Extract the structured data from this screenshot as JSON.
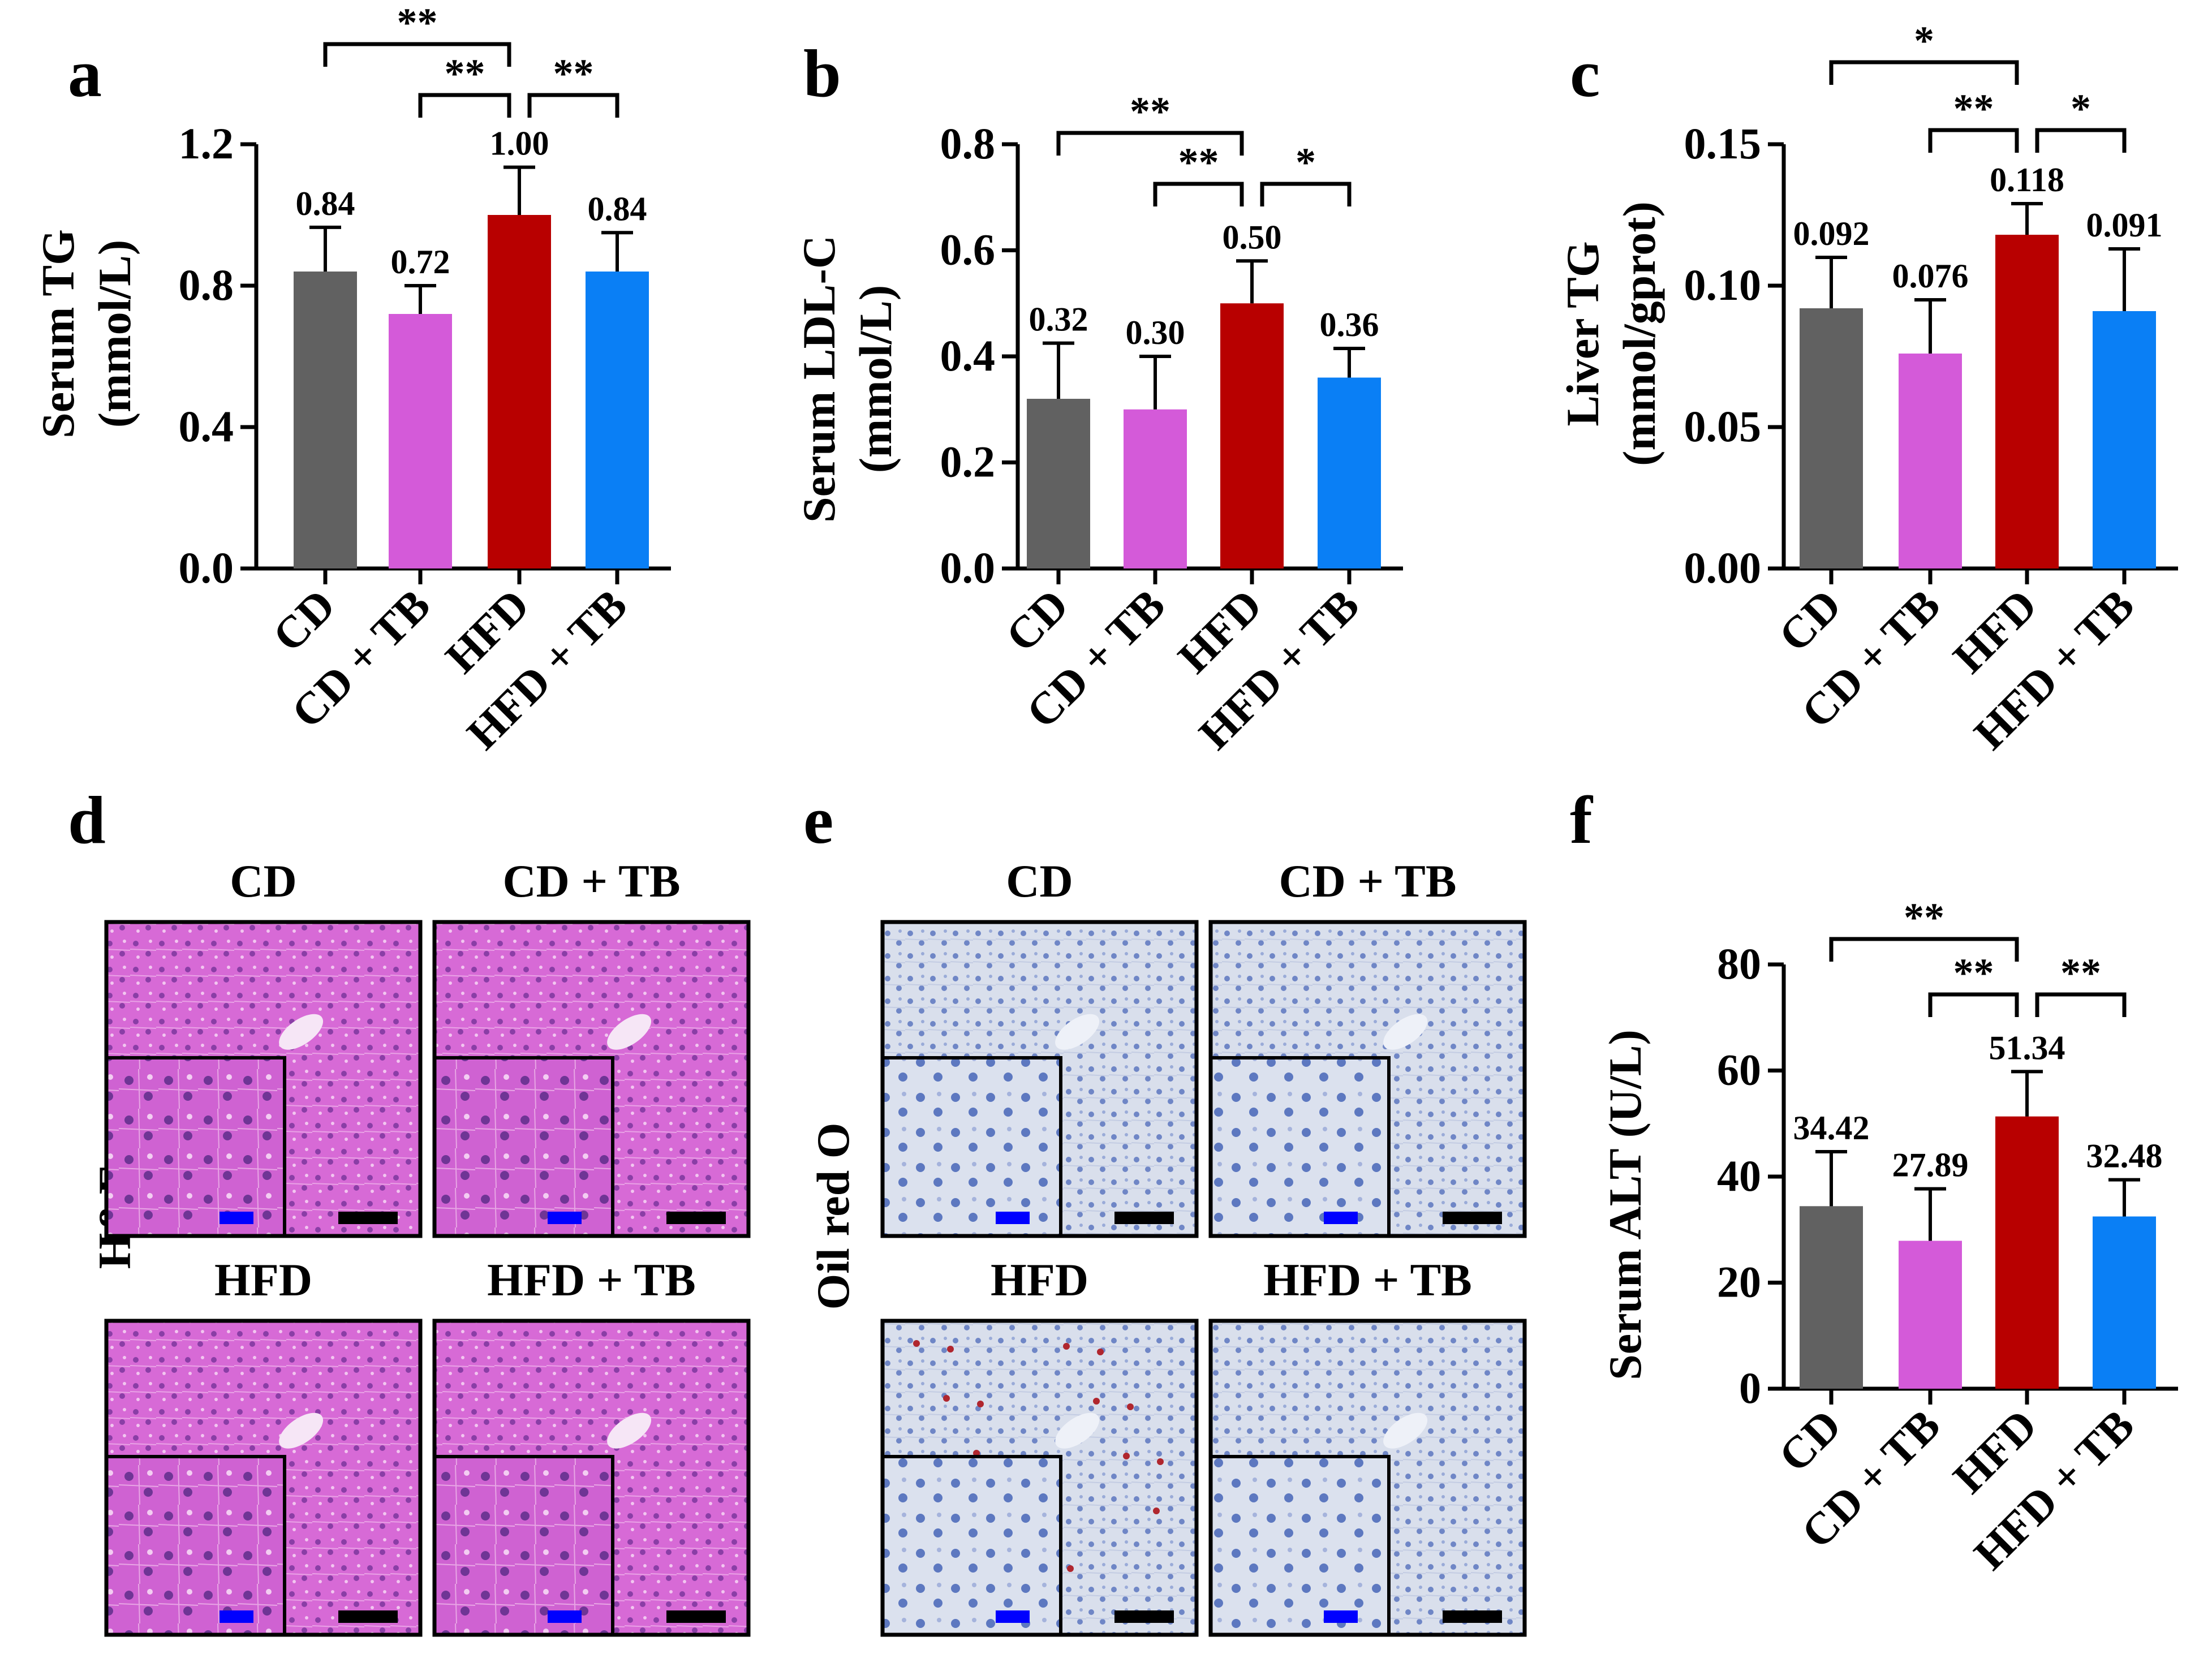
{
  "colors": {
    "CD": "#616161",
    "CD + TB": "#d45ad9",
    "HFD": "#b80000",
    "HFD + TB": "#0a7ff5",
    "axis": "#000000",
    "scale_bar_main": "#000000",
    "scale_bar_inset": "#0000ff"
  },
  "chart_data": [
    {
      "panel_label": "a",
      "type": "bar",
      "categories": [
        "CD",
        "CD + TB",
        "HFD",
        "HFD + TB"
      ],
      "values": [
        0.84,
        0.72,
        1.0,
        0.84
      ],
      "value_labels": [
        "0.84",
        "0.72",
        "1.00",
        "0.84"
      ],
      "error_upper": [
        0.965,
        0.8,
        1.135,
        0.95
      ],
      "ylabel": [
        "Serum TG",
        "(mmol/L)"
      ],
      "ylim": [
        0,
        1.2
      ],
      "yticks": [
        "0.0",
        "0.4",
        "0.8",
        "1.2"
      ],
      "significance": [
        {
          "from": 0,
          "to": 2,
          "label": "**"
        },
        {
          "from": 1,
          "to": 2,
          "label": "**"
        },
        {
          "from": 2,
          "to": 3,
          "label": "**"
        }
      ]
    },
    {
      "panel_label": "b",
      "type": "bar",
      "categories": [
        "CD",
        "CD + TB",
        "HFD",
        "HFD + TB"
      ],
      "values": [
        0.32,
        0.3,
        0.5,
        0.36
      ],
      "value_labels": [
        "0.32",
        "0.30",
        "0.50",
        "0.36"
      ],
      "error_upper": [
        0.425,
        0.4,
        0.58,
        0.415
      ],
      "ylabel": [
        "Serum LDL-C",
        "(mmol/L)"
      ],
      "ylim": [
        0,
        0.8
      ],
      "yticks": [
        "0.0",
        "0.2",
        "0.4",
        "0.6",
        "0.8"
      ],
      "significance": [
        {
          "from": 0,
          "to": 2,
          "label": "**"
        },
        {
          "from": 1,
          "to": 2,
          "label": "**"
        },
        {
          "from": 2,
          "to": 3,
          "label": "*"
        }
      ]
    },
    {
      "panel_label": "c",
      "type": "bar",
      "categories": [
        "CD",
        "CD + TB",
        "HFD",
        "HFD + TB"
      ],
      "values": [
        0.092,
        0.076,
        0.118,
        0.091
      ],
      "value_labels": [
        "0.092",
        "0.076",
        "0.118",
        "0.091"
      ],
      "error_upper": [
        0.11,
        0.095,
        0.129,
        0.113
      ],
      "ylabel": [
        "Liver TG",
        "(mmol/gprot)"
      ],
      "ylim": [
        0,
        0.15
      ],
      "yticks": [
        "0.00",
        "0.05",
        "0.10",
        "0.15"
      ],
      "significance": [
        {
          "from": 0,
          "to": 2,
          "label": "*"
        },
        {
          "from": 1,
          "to": 2,
          "label": "**"
        },
        {
          "from": 2,
          "to": 3,
          "label": "*"
        }
      ]
    },
    {
      "panel_label": "f",
      "type": "bar",
      "categories": [
        "CD",
        "CD + TB",
        "HFD",
        "HFD + TB"
      ],
      "values": [
        34.42,
        27.89,
        51.34,
        32.48
      ],
      "value_labels": [
        "34.42",
        "27.89",
        "51.34",
        "32.48"
      ],
      "error_upper": [
        44.7,
        37.7,
        59.8,
        39.4
      ],
      "ylabel": [
        "Serum ALT (U/L)"
      ],
      "ylim": [
        0,
        80
      ],
      "yticks": [
        "0",
        "20",
        "40",
        "60",
        "80"
      ],
      "significance": [
        {
          "from": 0,
          "to": 2,
          "label": "**"
        },
        {
          "from": 1,
          "to": 2,
          "label": "**"
        },
        {
          "from": 2,
          "to": 3,
          "label": "**"
        }
      ]
    }
  ],
  "micrographs": [
    {
      "panel_label": "d",
      "side_label": "H&E",
      "stain": "he",
      "titles": [
        "CD",
        "CD + TB",
        "HFD",
        "HFD + TB"
      ]
    },
    {
      "panel_label": "e",
      "side_label": "Oil red O",
      "stain": "oro",
      "titles": [
        "CD",
        "CD + TB",
        "HFD",
        "HFD + TB"
      ]
    }
  ]
}
